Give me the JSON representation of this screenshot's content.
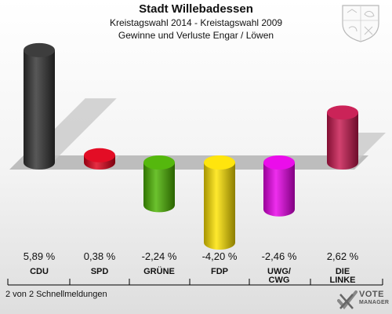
{
  "header": {
    "title": "Stadt Willebadessen",
    "subtitle_1": "Kreistagswahl 2014 - Kreistagswahl 2009",
    "subtitle_2": "Gewinne und Verluste Engar / Löwen"
  },
  "footer": {
    "note": "2 von 2 Schnellmeldungen"
  },
  "logo": {
    "name": "VOTE",
    "tagline": "MANAGER",
    "icon": "vote-check-icon"
  },
  "crest": {
    "icon": "coat-of-arms-icon"
  },
  "colors": {
    "CDU": "#333333",
    "SPD": "#e2001a",
    "GRÜNE": "#4cb400",
    "FDP": "#ffe400",
    "UWG/CWG": "#ea00ea",
    "DIE LINKE": "#c8174f"
  },
  "chart_data": {
    "type": "bar",
    "categories": [
      "CDU",
      "SPD",
      "GRÜNE",
      "FDP",
      "UWG/ CWG",
      "DIE LINKE"
    ],
    "values": [
      5.89,
      0.38,
      -2.24,
      -4.2,
      -2.46,
      2.62
    ],
    "value_labels": [
      "5,89 %",
      "0,38 %",
      "-2,24 %",
      "-4,20 %",
      "-2,46 %",
      "2,62 %"
    ],
    "title": "Stadt Willebadessen",
    "subtitle": "Kreistagswahl 2014 - Kreistagswahl 2009 / Gewinne und Verluste Engar / Löwen",
    "xlabel": "",
    "ylabel": "",
    "grid": false
  }
}
